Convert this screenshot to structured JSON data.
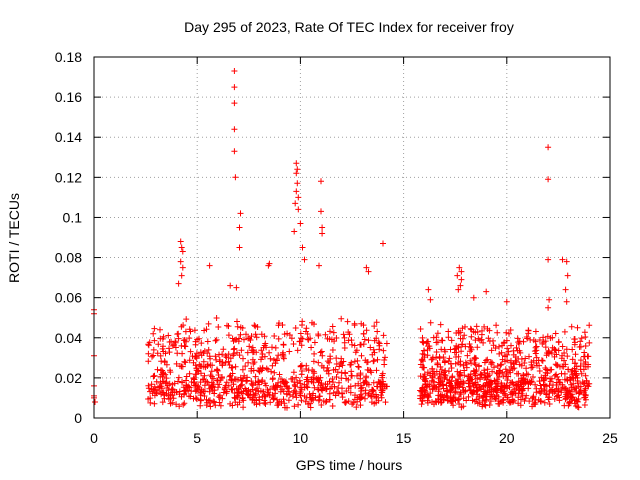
{
  "chart_data": {
    "type": "scatter",
    "title": "Day 295 of 2023, Rate Of TEC Index for receiver froy",
    "xlabel": "GPS time / hours",
    "ylabel": "ROTI / TECUs",
    "xlim": [
      0,
      25
    ],
    "ylim": [
      0,
      0.18
    ],
    "x_ticks": [
      0,
      5,
      10,
      15,
      20,
      25
    ],
    "x_tick_labels": [
      "0",
      "5",
      "10",
      "15",
      "20",
      "25"
    ],
    "y_ticks": [
      0,
      0.02,
      0.04,
      0.06,
      0.08,
      0.1,
      0.12,
      0.14,
      0.16,
      0.18
    ],
    "y_tick_labels": [
      "0",
      "0.02",
      "0.04",
      "0.06",
      "0.08",
      "0.1",
      "0.12",
      "0.14",
      "0.16",
      "0.18"
    ],
    "grid": true,
    "marker": "+",
    "color": "#ff0000",
    "series": [
      {
        "name": "ROTI",
        "points": [
          [
            0.0,
            0.054
          ],
          [
            0.0,
            0.052
          ],
          [
            0.0,
            0.031
          ],
          [
            0.0,
            0.016
          ],
          [
            0.0,
            0.011
          ],
          [
            0.0,
            0.01
          ],
          [
            0.05,
            0.008
          ],
          [
            6.8,
            0.173
          ],
          [
            6.8,
            0.165
          ],
          [
            6.8,
            0.157
          ],
          [
            6.8,
            0.144
          ],
          [
            6.8,
            0.133
          ],
          [
            6.85,
            0.12
          ],
          [
            7.1,
            0.102
          ],
          [
            7.05,
            0.095
          ],
          [
            7.05,
            0.085
          ],
          [
            6.6,
            0.066
          ],
          [
            6.9,
            0.065
          ],
          [
            9.8,
            0.127
          ],
          [
            9.85,
            0.124
          ],
          [
            9.8,
            0.122
          ],
          [
            9.85,
            0.117
          ],
          [
            9.8,
            0.113
          ],
          [
            9.9,
            0.11
          ],
          [
            9.75,
            0.107
          ],
          [
            9.9,
            0.104
          ],
          [
            10.0,
            0.097
          ],
          [
            9.7,
            0.093
          ],
          [
            10.1,
            0.085
          ],
          [
            10.2,
            0.079
          ],
          [
            11.0,
            0.118
          ],
          [
            11.0,
            0.103
          ],
          [
            11.05,
            0.095
          ],
          [
            11.05,
            0.092
          ],
          [
            10.9,
            0.076
          ],
          [
            4.2,
            0.088
          ],
          [
            4.25,
            0.085
          ],
          [
            4.3,
            0.083
          ],
          [
            4.2,
            0.078
          ],
          [
            4.3,
            0.075
          ],
          [
            4.25,
            0.071
          ],
          [
            4.1,
            0.067
          ],
          [
            8.5,
            0.077
          ],
          [
            8.45,
            0.076
          ],
          [
            14.0,
            0.087
          ],
          [
            13.2,
            0.075
          ],
          [
            13.3,
            0.073
          ],
          [
            22.0,
            0.135
          ],
          [
            22.0,
            0.119
          ],
          [
            22.0,
            0.079
          ],
          [
            22.05,
            0.059
          ],
          [
            22.0,
            0.055
          ],
          [
            22.7,
            0.079
          ],
          [
            22.9,
            0.078
          ],
          [
            22.95,
            0.071
          ],
          [
            22.85,
            0.064
          ],
          [
            22.9,
            0.058
          ],
          [
            17.7,
            0.075
          ],
          [
            17.8,
            0.073
          ],
          [
            17.6,
            0.071
          ],
          [
            17.8,
            0.069
          ],
          [
            17.75,
            0.066
          ],
          [
            17.65,
            0.064
          ],
          [
            16.2,
            0.064
          ],
          [
            16.3,
            0.059
          ],
          [
            19.0,
            0.063
          ],
          [
            20.0,
            0.058
          ],
          [
            18.4,
            0.06
          ],
          [
            5.6,
            0.076
          ],
          [
            3.2,
            0.044
          ]
        ]
      }
    ],
    "dense_segments": [
      {
        "x_start": 2.6,
        "x_end": 14.2,
        "y_base": 0.012,
        "y_spread": 0.035
      },
      {
        "x_start": 15.8,
        "x_end": 24.0,
        "y_base": 0.012,
        "y_spread": 0.032
      }
    ]
  }
}
